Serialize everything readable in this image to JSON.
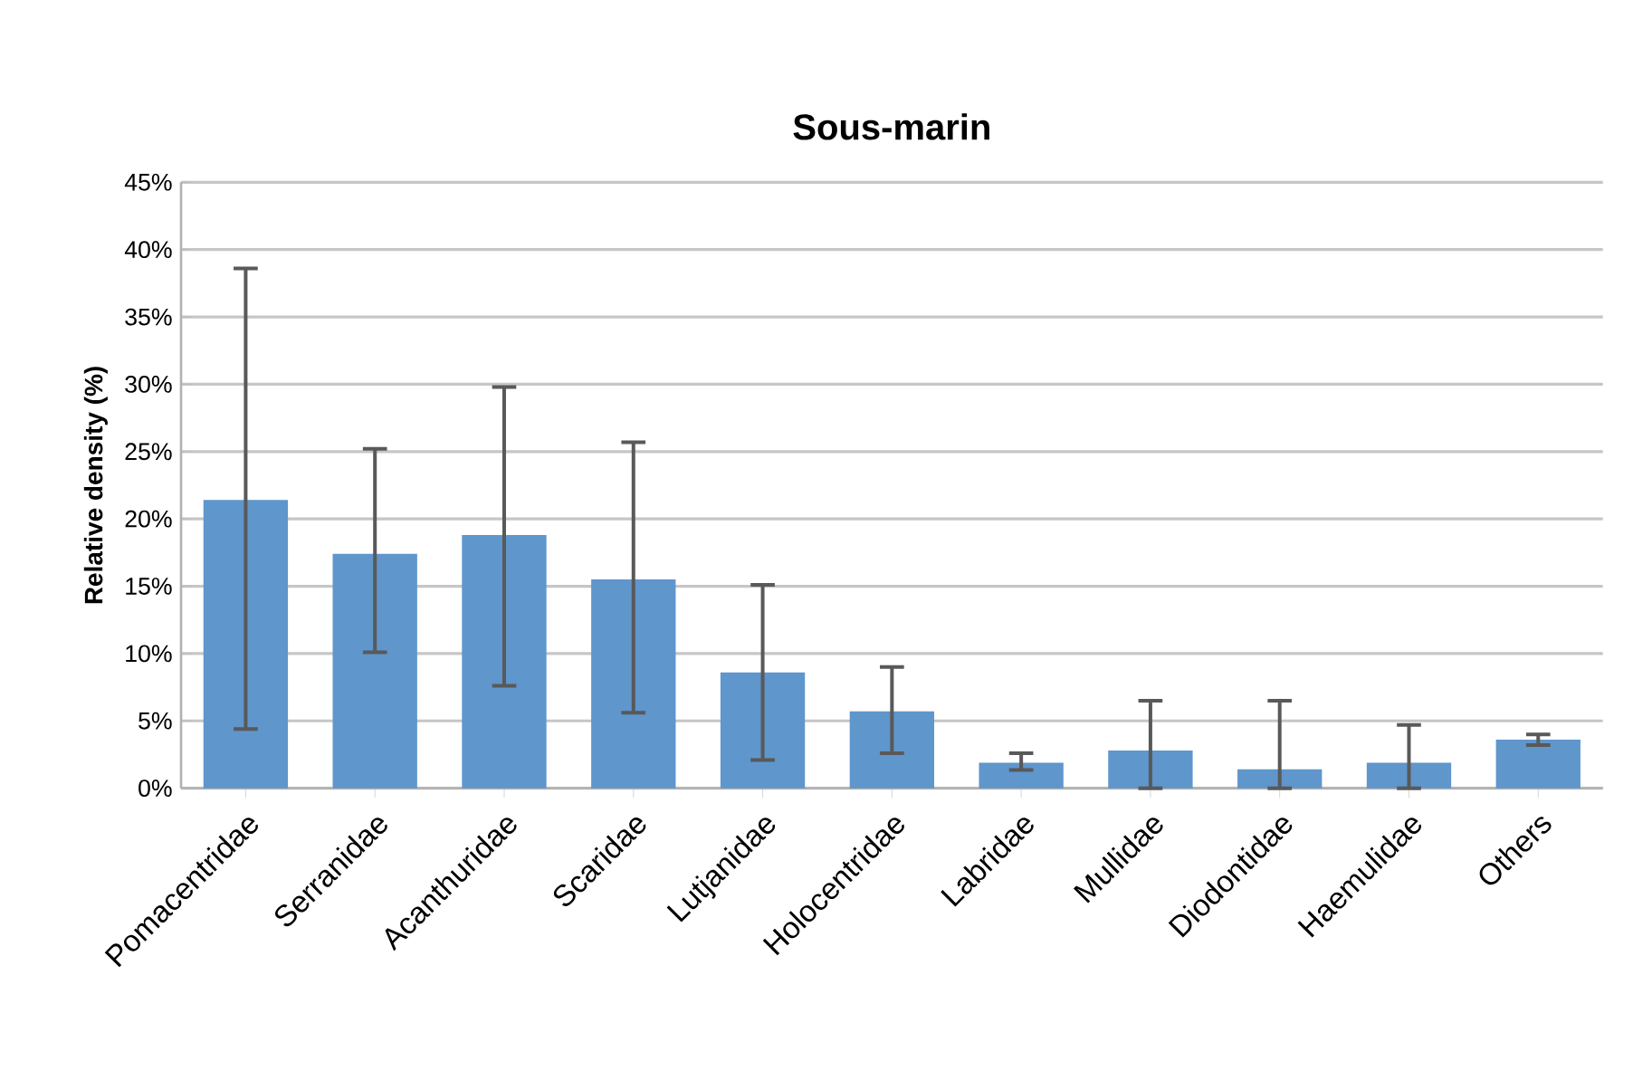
{
  "chart_data": {
    "type": "bar",
    "title": "Sous-marin",
    "ylabel": "Relative density (%)",
    "categories": [
      "Pomacentridae",
      "Serranidae",
      "Acanthuridae",
      "Scaridae",
      "Lutjanidae",
      "Holocentridae",
      "Labridae",
      "Mullidae",
      "Diodontidae",
      "Haemulidae",
      "Others"
    ],
    "values": [
      21.4,
      17.4,
      18.8,
      15.5,
      8.6,
      5.7,
      1.9,
      2.8,
      1.4,
      1.9,
      3.6
    ],
    "errors": [
      [
        4.4,
        38.6
      ],
      [
        10.1,
        25.2
      ],
      [
        7.6,
        29.8
      ],
      [
        5.6,
        25.7
      ],
      [
        2.1,
        15.1
      ],
      [
        2.6,
        9.0
      ],
      [
        1.35,
        2.6
      ],
      [
        0,
        6.5
      ],
      [
        0,
        6.5
      ],
      [
        0,
        4.7
      ],
      [
        3.2,
        4.0
      ]
    ],
    "color": "#5f96cc",
    "ylim": [
      0,
      45
    ],
    "yticks": [
      {
        "value": 0,
        "label": "0%"
      },
      {
        "value": 5,
        "label": "5%"
      },
      {
        "value": 10,
        "label": "10%"
      },
      {
        "value": 15,
        "label": "15%"
      },
      {
        "value": 20,
        "label": "20%"
      },
      {
        "value": 25,
        "label": "25%"
      },
      {
        "value": 30,
        "label": "30%"
      },
      {
        "value": 35,
        "label": "35%"
      },
      {
        "value": 40,
        "label": "40%"
      },
      {
        "value": 45,
        "label": "45%"
      }
    ],
    "grid": "y"
  }
}
